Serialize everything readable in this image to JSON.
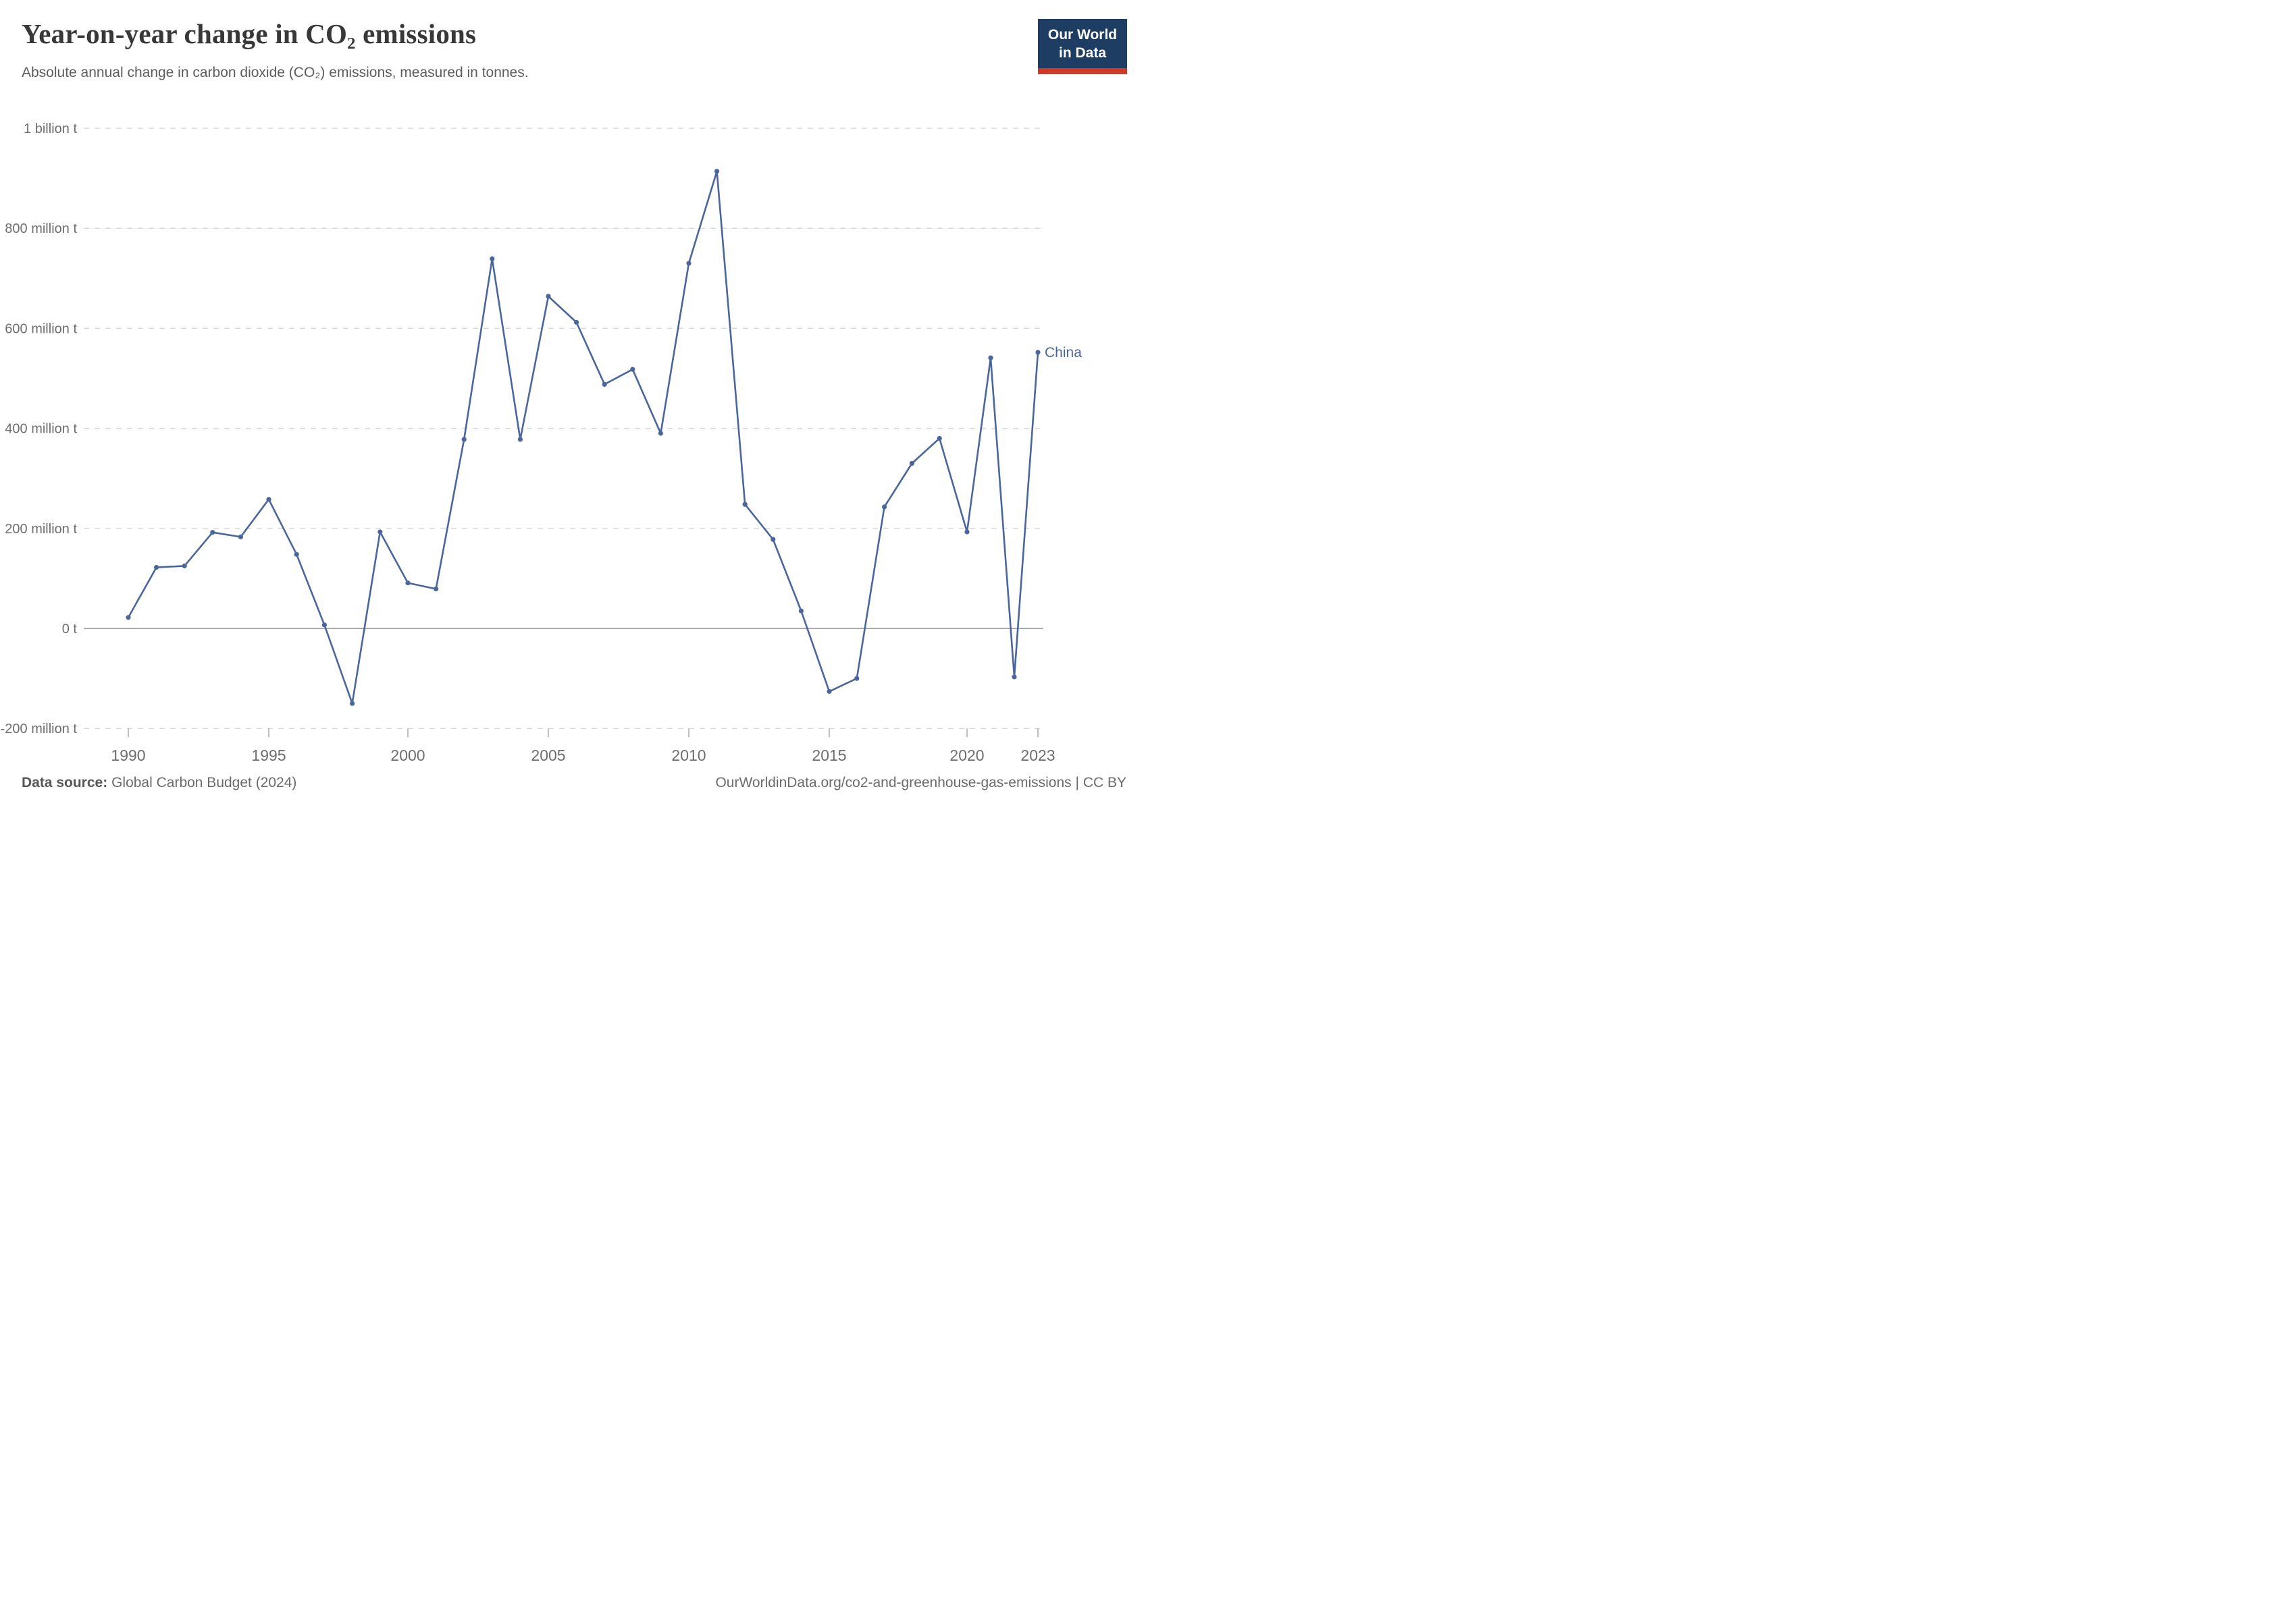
{
  "header": {
    "title": "Year-on-year change in CO₂ emissions",
    "subtitle": "Absolute annual change in carbon dioxide (CO₂) emissions, measured in tonnes."
  },
  "logo": {
    "line1": "Our World",
    "line2": "in Data"
  },
  "chart_data": {
    "type": "line",
    "title": "Year-on-year change in CO₂ emissions",
    "x": [
      1990,
      1991,
      1992,
      1993,
      1994,
      1995,
      1996,
      1997,
      1998,
      1999,
      2000,
      2001,
      2002,
      2003,
      2004,
      2005,
      2006,
      2007,
      2008,
      2009,
      2010,
      2011,
      2012,
      2013,
      2014,
      2015,
      2016,
      2017,
      2018,
      2019,
      2020,
      2021,
      2022,
      2023
    ],
    "series": [
      {
        "name": "China",
        "unit": "million tonnes",
        "values": [
          22,
          122,
          125,
          192,
          183,
          258,
          148,
          7,
          -150,
          193,
          91,
          79,
          378,
          739,
          378,
          664,
          612,
          488,
          518,
          390,
          730,
          914,
          248,
          178,
          35,
          -126,
          -100,
          243,
          330,
          380,
          193,
          541,
          -97,
          552
        ]
      }
    ],
    "ylim": [
      -200,
      1000
    ],
    "yticks": [
      {
        "value": 1000,
        "label": "1 billion t"
      },
      {
        "value": 800,
        "label": "800 million t"
      },
      {
        "value": 600,
        "label": "600 million t"
      },
      {
        "value": 400,
        "label": "400 million t"
      },
      {
        "value": 200,
        "label": "200 million t"
      },
      {
        "value": 0,
        "label": "0 t"
      },
      {
        "value": -200,
        "label": "-200 million t"
      }
    ],
    "xticks": [
      1990,
      1995,
      2000,
      2005,
      2010,
      2015,
      2020,
      2023
    ],
    "grid": "dashed-horizontal",
    "legend_position": "end-of-line",
    "end_label": "China",
    "colors": {
      "line": "#4a669c",
      "grid": "#d8d8d8",
      "zero_line": "#8f8f8f",
      "axis_text": "#6e6e6e",
      "tick_mark": "#a8a8a8"
    }
  },
  "footer": {
    "source_label": "Data source:",
    "source_value": "Global Carbon Budget (2024)",
    "link": "OurWorldinData.org/co2-and-greenhouse-gas-emissions",
    "separator": "|",
    "license": "CC BY"
  }
}
